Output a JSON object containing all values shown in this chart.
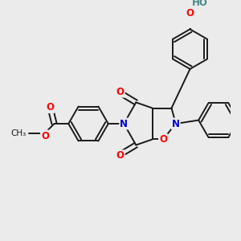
{
  "bg_color": "#ebebeb",
  "bond_color": "#1a1a1a",
  "bond_width": 1.4,
  "atom_colors": {
    "N": "#0000cc",
    "O": "#ff0000",
    "O_teal": "#4a8888",
    "C": "#1a1a1a"
  },
  "font_size_atom": 8.5,
  "font_size_label": 7.5
}
